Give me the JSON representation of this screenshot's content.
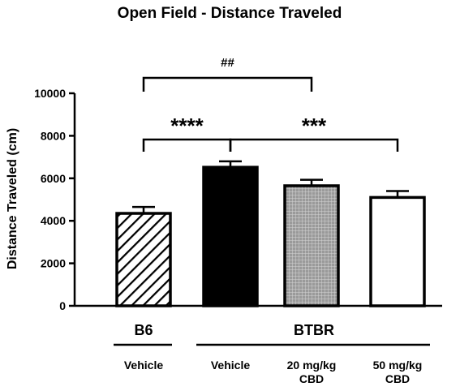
{
  "chart_data": {
    "type": "bar",
    "title": "Open Field - Distance Traveled",
    "ylabel": "Distance Traveled (cm)",
    "ylim": [
      0,
      10000
    ],
    "yticks": [
      "0",
      "2000",
      "4000",
      "6000",
      "8000",
      "10000"
    ],
    "categories": [
      "B6 Vehicle",
      "BTBR Vehicle",
      "BTBR 20 mg/kg CBD",
      "BTBR 50 mg/kg CBD"
    ],
    "values": [
      4350,
      6520,
      5650,
      5100
    ],
    "errors": [
      300,
      280,
      280,
      300
    ],
    "bar_styles": [
      "hatched",
      "black",
      "grey-grid",
      "white"
    ],
    "groups": [
      {
        "label": "B6",
        "conditions": [
          [
            "Vehicle"
          ]
        ]
      },
      {
        "label": "BTBR",
        "conditions": [
          [
            "Vehicle"
          ],
          [
            "20 mg/kg",
            "CBD"
          ],
          [
            "50 mg/kg",
            "CBD"
          ]
        ]
      }
    ],
    "comparisons": [
      {
        "from": 0,
        "to": 1,
        "label": "****"
      },
      {
        "from": 1,
        "to": 3,
        "label": "***"
      },
      {
        "from": 0,
        "to": 2,
        "label": "##"
      }
    ]
  }
}
